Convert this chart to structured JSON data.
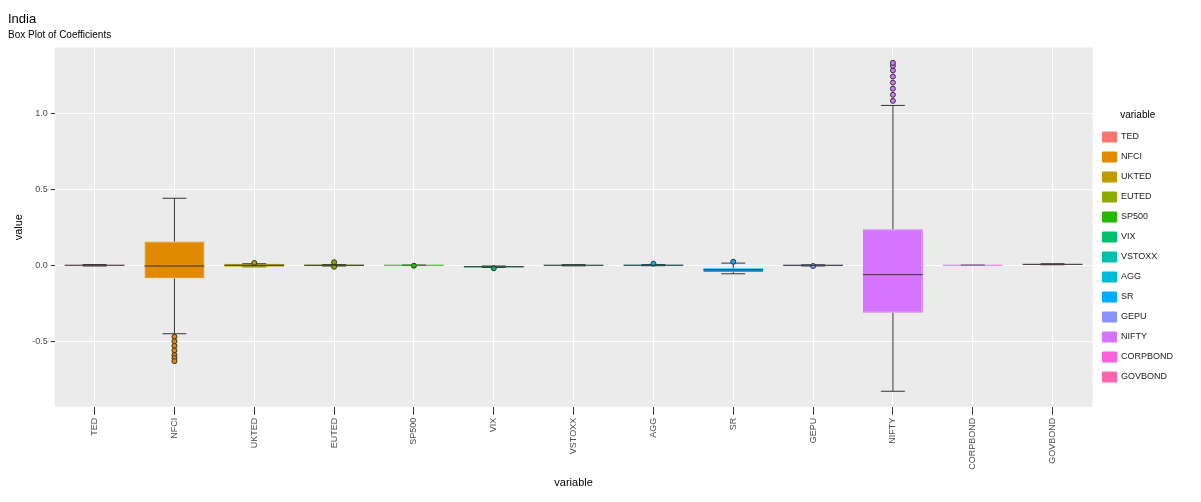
{
  "chart_data": {
    "type": "box",
    "title": "India",
    "subtitle": "Box Plot of Coefficients",
    "xlabel": "variable",
    "ylabel": "value",
    "legend_title": "variable",
    "legend": "right",
    "grid": true,
    "categories": [
      "TED",
      "NFCI",
      "UKTED",
      "EUTED",
      "SP500",
      "VIX",
      "VSTOXX",
      "AGG",
      "SR",
      "GEPU",
      "NIFTY",
      "CORPBOND",
      "GOVBOND"
    ],
    "series": [
      {
        "name": "TED",
        "color": "#f8766d",
        "boxes": [
          {
            "low": -0.005,
            "q1": -0.003,
            "median": 0,
            "q3": 0.003,
            "high": 0.005
          },
          null,
          null,
          null,
          null,
          null,
          null,
          null,
          null,
          null,
          null,
          null,
          null
        ]
      },
      {
        "name": "NFCI",
        "color": "#e18a00",
        "boxes": [
          null,
          {
            "low": -0.45,
            "q1": -0.086,
            "median": -0.005,
            "q3": 0.156,
            "high": 0.44,
            "outliers": [
              -0.47,
              -0.5,
              -0.53,
              -0.56,
              -0.59,
              -0.61,
              -0.63
            ]
          },
          null,
          null,
          null,
          null,
          null,
          null,
          null,
          null,
          null,
          null,
          null
        ]
      },
      {
        "name": "UKTED",
        "color": "#be9c00",
        "boxes": [
          null,
          null,
          {
            "low": -0.01,
            "q1": -0.01,
            "median": 0,
            "q3": 0.01,
            "high": 0.01,
            "outliers": [
              0.015
            ]
          },
          null,
          null,
          null,
          null,
          null,
          null,
          null,
          null,
          null,
          null
        ]
      },
      {
        "name": "EUTED",
        "color": "#8cab00",
        "boxes": [
          null,
          null,
          null,
          {
            "low": -0.005,
            "q1": -0.005,
            "median": 0,
            "q3": 0.005,
            "high": 0.005,
            "outliers": [
              0.02,
              -0.01
            ]
          },
          null,
          null,
          null,
          null,
          null,
          null,
          null,
          null,
          null
        ]
      },
      {
        "name": "SP500",
        "color": "#24b700",
        "boxes": [
          null,
          null,
          null,
          null,
          {
            "low": 0,
            "q1": 0,
            "median": 0,
            "q3": 0,
            "high": 0,
            "outliers": [
              -0.003
            ]
          },
          null,
          null,
          null,
          null,
          null,
          null,
          null,
          null
        ]
      },
      {
        "name": "VIX",
        "color": "#00be70",
        "boxes": [
          null,
          null,
          null,
          null,
          null,
          {
            "low": -0.015,
            "q1": -0.015,
            "median": -0.01,
            "q3": -0.005,
            "high": -0.005,
            "outliers": [
              -0.02
            ]
          },
          null,
          null,
          null,
          null,
          null,
          null,
          null
        ]
      },
      {
        "name": "VSTOXX",
        "color": "#00c1ab",
        "boxes": [
          null,
          null,
          null,
          null,
          null,
          null,
          {
            "low": -0.004,
            "q1": -0.004,
            "median": 0,
            "q3": 0.004,
            "high": 0.004
          },
          null,
          null,
          null,
          null,
          null,
          null
        ]
      },
      {
        "name": "AGG",
        "color": "#00bbda",
        "boxes": [
          null,
          null,
          null,
          null,
          null,
          null,
          null,
          {
            "low": -0.003,
            "q1": -0.003,
            "median": 0,
            "q3": 0.005,
            "high": 0.005,
            "outliers": [
              0.01
            ]
          },
          null,
          null,
          null,
          null,
          null
        ]
      },
      {
        "name": "SR",
        "color": "#00acfc",
        "boxes": [
          null,
          null,
          null,
          null,
          null,
          null,
          null,
          null,
          {
            "low": -0.056,
            "q1": -0.044,
            "median": -0.03,
            "q3": -0.02,
            "high": 0.014,
            "outliers": [
              0.023
            ]
          },
          null,
          null,
          null,
          null
        ]
      },
      {
        "name": "GEPU",
        "color": "#8b93ff",
        "boxes": [
          null,
          null,
          null,
          null,
          null,
          null,
          null,
          null,
          null,
          {
            "low": -0.005,
            "q1": -0.005,
            "median": 0,
            "q3": 0.003,
            "high": 0.003,
            "outliers": [
              -0.005
            ]
          },
          null,
          null,
          null
        ]
      },
      {
        "name": "NIFTY",
        "color": "#d575fe",
        "boxes": [
          null,
          null,
          null,
          null,
          null,
          null,
          null,
          null,
          null,
          null,
          {
            "low": -0.828,
            "q1": -0.312,
            "median": -0.062,
            "q3": 0.236,
            "high": 1.05,
            "outliers": [
              1.08,
              1.12,
              1.16,
              1.2,
              1.24,
              1.28,
              1.31,
              1.33
            ]
          },
          null,
          null
        ]
      },
      {
        "name": "CORPBOND",
        "color": "#f962dd",
        "boxes": [
          null,
          null,
          null,
          null,
          null,
          null,
          null,
          null,
          null,
          null,
          null,
          {
            "low": 0,
            "q1": 0,
            "median": 0,
            "q3": 0,
            "high": 0
          },
          null
        ]
      },
      {
        "name": "GOVBOND",
        "color": "#ff65ac",
        "boxes": [
          null,
          null,
          null,
          null,
          null,
          null,
          null,
          null,
          null,
          null,
          null,
          null,
          {
            "low": 0.003,
            "q1": 0.003,
            "median": 0.006,
            "q3": 0.01,
            "high": 0.01
          }
        ]
      }
    ],
    "ylim": [
      -0.93,
      1.43
    ],
    "yticks": [
      -0.5,
      {
        "value": 0,
        "label": "0.0"
      },
      0.5,
      {
        "value": 1,
        "label": "1.0"
      }
    ]
  }
}
